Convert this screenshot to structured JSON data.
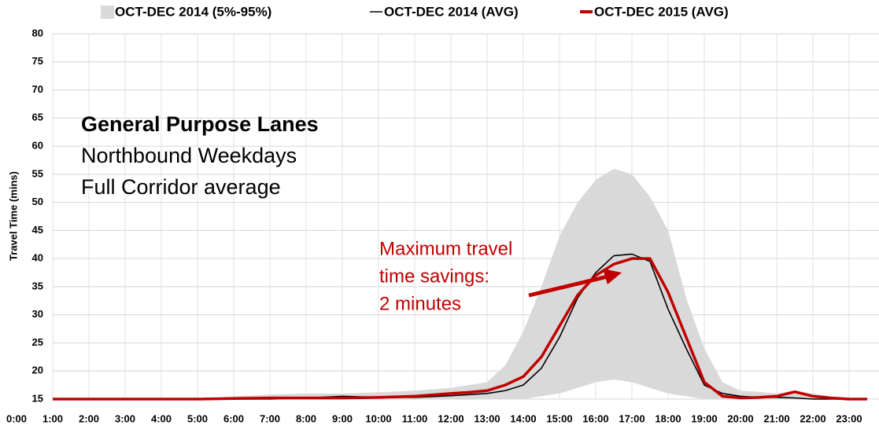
{
  "chart_data": {
    "type": "line",
    "y_label": "Travel Time (mins)",
    "annotations": {
      "box": [
        "General Purpose Lanes",
        "Northbound Weekdays",
        "Full Corridor average"
      ],
      "callout": [
        "Maximum  travel",
        "time savings:",
        "2 minutes"
      ]
    },
    "x": [
      1,
      2,
      3,
      4,
      5,
      6,
      7,
      8,
      9,
      10,
      11,
      12,
      12.5,
      13,
      13.5,
      14,
      14.5,
      15,
      15.5,
      16,
      16.5,
      17,
      17.5,
      18,
      18.5,
      19,
      19.5,
      20,
      20.5,
      21,
      21.5,
      22,
      22.5,
      23,
      23.5
    ],
    "series": [
      {
        "name": "OCT-DEC 2014 (5%-95%)",
        "color": "#d9d9d9",
        "kind": "band",
        "values": [
          15,
          15,
          15,
          15,
          15,
          15.5,
          15.8,
          16,
          16,
          16.2,
          16.5,
          17,
          17.5,
          18,
          21,
          27,
          35,
          44,
          50,
          54,
          56,
          55,
          51,
          45,
          33,
          24,
          18,
          16.5,
          16.3,
          16,
          16.5,
          16,
          15.5,
          15.2,
          15
        ],
        "lower": [
          15,
          15,
          15,
          15,
          15,
          15,
          15,
          15,
          15,
          15,
          15,
          15,
          15,
          15,
          15,
          15,
          15.5,
          16,
          17,
          18,
          18.5,
          18,
          17,
          16,
          15.5,
          15,
          15,
          15,
          15,
          15,
          15,
          15,
          15,
          15,
          15
        ]
      },
      {
        "name": "OCT-DEC 2014 (AVG)",
        "color": "#000000",
        "values": [
          15,
          15,
          15,
          15,
          15,
          15,
          15,
          15.2,
          15.5,
          15.3,
          15.3,
          15.6,
          15.8,
          16,
          16.5,
          17.5,
          20.5,
          26,
          33,
          37.5,
          40.5,
          40.8,
          39.5,
          31,
          24,
          17.5,
          16,
          15.5,
          15.3,
          15.3,
          15.2,
          15,
          15,
          15,
          15
        ]
      },
      {
        "name": "OCT-DEC 2015 (AVG)",
        "color": "#c00000",
        "values": [
          15,
          15,
          15,
          15,
          15,
          15.1,
          15.2,
          15.2,
          15.2,
          15.3,
          15.5,
          16,
          16.2,
          16.5,
          17.5,
          19,
          22.5,
          28,
          33.5,
          37,
          39,
          40,
          40,
          34,
          26,
          18,
          15.5,
          15.2,
          15.3,
          15.5,
          16.3,
          15.5,
          15.2,
          15,
          15
        ]
      }
    ],
    "xlim": [
      0,
      23.5
    ],
    "xticks": [
      {
        "value": 0,
        "label": "0:00"
      },
      {
        "value": 1,
        "label": "1:00"
      },
      {
        "value": 2,
        "label": "2:00"
      },
      {
        "value": 3,
        "label": "3:00"
      },
      {
        "value": 4,
        "label": "4:00"
      },
      {
        "value": 5,
        "label": "5:00"
      },
      {
        "value": 6,
        "label": "6:00"
      },
      {
        "value": 7,
        "label": "7:00"
      },
      {
        "value": 8,
        "label": "8:00"
      },
      {
        "value": 9,
        "label": "9:00"
      },
      {
        "value": 10,
        "label": "10:00"
      },
      {
        "value": 11,
        "label": "11:00"
      },
      {
        "value": 12,
        "label": "12:00"
      },
      {
        "value": 13,
        "label": "13:00"
      },
      {
        "value": 14,
        "label": "14:00"
      },
      {
        "value": 15,
        "label": "15:00"
      },
      {
        "value": 16,
        "label": "16:00"
      },
      {
        "value": 17,
        "label": "17:00"
      },
      {
        "value": 18,
        "label": "18:00"
      },
      {
        "value": 19,
        "label": "19:00"
      },
      {
        "value": 20,
        "label": "20:00"
      },
      {
        "value": 21,
        "label": "21:00"
      },
      {
        "value": 22,
        "label": "22:00"
      },
      {
        "value": 23,
        "label": "23:00"
      }
    ],
    "ylim": [
      15,
      80
    ],
    "yticks": [
      15,
      20,
      25,
      30,
      35,
      40,
      45,
      50,
      55,
      60,
      65,
      70,
      75,
      80
    ],
    "grid": true
  }
}
